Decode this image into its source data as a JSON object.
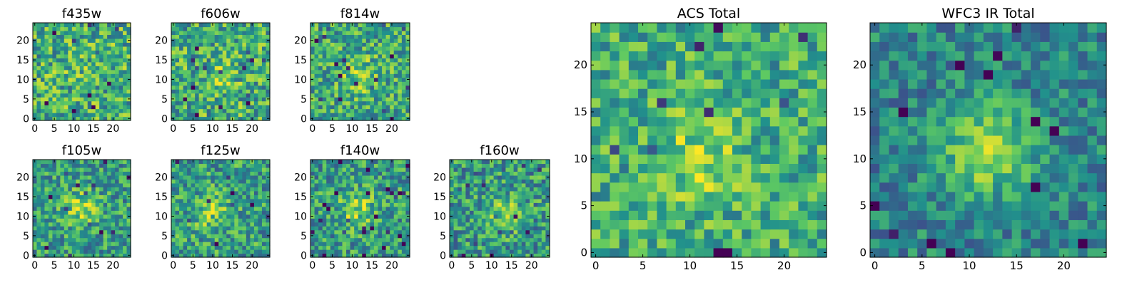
{
  "figure": {
    "colormap": "viridis",
    "colors": {
      "viridis_stops": [
        "#440154",
        "#3b528b",
        "#21918c",
        "#5ec962",
        "#fde725"
      ],
      "axes_border": "#000000",
      "background": "#ffffff"
    }
  },
  "chart_data": [
    {
      "id": "f435w",
      "type": "heatmap",
      "title": "f435w",
      "grid": false,
      "xlim": [
        0,
        24
      ],
      "ylim": [
        0,
        24
      ],
      "xticks": [
        "0",
        "5",
        "10",
        "15",
        "20"
      ],
      "yticks": [
        "0",
        "5",
        "10",
        "15",
        "20"
      ],
      "peak": {
        "x": 12,
        "y": 12
      },
      "peak_strength": 0.05,
      "noise": 0.3,
      "base_level": 0.63,
      "seed": 11
    },
    {
      "id": "f606w",
      "type": "heatmap",
      "title": "f606w",
      "grid": false,
      "xlim": [
        0,
        24
      ],
      "ylim": [
        0,
        24
      ],
      "xticks": [
        "0",
        "5",
        "10",
        "15",
        "20"
      ],
      "yticks": [
        "0",
        "5",
        "10",
        "15",
        "20"
      ],
      "peak": {
        "x": 12,
        "y": 10
      },
      "peak_strength": 0.12,
      "noise": 0.3,
      "base_level": 0.62,
      "seed": 23
    },
    {
      "id": "f814w",
      "type": "heatmap",
      "title": "f814w",
      "grid": false,
      "xlim": [
        0,
        24
      ],
      "ylim": [
        0,
        24
      ],
      "xticks": [
        "0",
        "5",
        "10",
        "15",
        "20"
      ],
      "yticks": [
        "0",
        "5",
        "10",
        "15",
        "20"
      ],
      "peak": {
        "x": 12,
        "y": 11
      },
      "peak_strength": 0.2,
      "noise": 0.28,
      "base_level": 0.6,
      "seed": 37
    },
    {
      "id": "f105w",
      "type": "heatmap",
      "title": "f105w",
      "grid": false,
      "xlim": [
        0,
        24
      ],
      "ylim": [
        0,
        24
      ],
      "xticks": [
        "0",
        "5",
        "10",
        "15",
        "20"
      ],
      "yticks": [
        "0",
        "5",
        "10",
        "15",
        "20"
      ],
      "peak": {
        "x": 12,
        "y": 12
      },
      "peak_strength": 0.28,
      "noise": 0.26,
      "base_level": 0.55,
      "seed": 41
    },
    {
      "id": "f125w",
      "type": "heatmap",
      "title": "f125w",
      "grid": false,
      "xlim": [
        0,
        24
      ],
      "ylim": [
        0,
        24
      ],
      "xticks": [
        "0",
        "5",
        "10",
        "15",
        "20"
      ],
      "yticks": [
        "0",
        "5",
        "10",
        "15",
        "20"
      ],
      "peak": {
        "x": 10,
        "y": 11
      },
      "peak_strength": 0.25,
      "noise": 0.27,
      "base_level": 0.56,
      "seed": 53
    },
    {
      "id": "f140w",
      "type": "heatmap",
      "title": "f140w",
      "grid": false,
      "xlim": [
        0,
        24
      ],
      "ylim": [
        0,
        24
      ],
      "xticks": [
        "0",
        "5",
        "10",
        "15",
        "20"
      ],
      "yticks": [
        "0",
        "5",
        "10",
        "15",
        "20"
      ],
      "peak": {
        "x": 11,
        "y": 12
      },
      "peak_strength": 0.27,
      "noise": 0.27,
      "base_level": 0.55,
      "seed": 67
    },
    {
      "id": "f160w",
      "type": "heatmap",
      "title": "f160w",
      "grid": false,
      "xlim": [
        0,
        24
      ],
      "ylim": [
        0,
        24
      ],
      "xticks": [
        "0",
        "5",
        "10",
        "15",
        "20"
      ],
      "yticks": [
        "0",
        "5",
        "10",
        "15",
        "20"
      ],
      "peak": {
        "x": 13,
        "y": 11
      },
      "peak_strength": 0.25,
      "noise": 0.28,
      "base_level": 0.54,
      "seed": 79
    },
    {
      "id": "acs_total",
      "type": "heatmap",
      "title": "ACS Total",
      "grid": false,
      "xlim": [
        0,
        24
      ],
      "ylim": [
        0,
        24
      ],
      "xticks": [
        "0",
        "5",
        "10",
        "15",
        "20"
      ],
      "yticks": [
        "0",
        "5",
        "10",
        "15",
        "20"
      ],
      "peak": {
        "x": 11,
        "y": 10
      },
      "peak_strength": 0.22,
      "noise": 0.24,
      "base_level": 0.62,
      "seed": 97
    },
    {
      "id": "wfc3_ir_total",
      "type": "heatmap",
      "title": "WFC3 IR Total",
      "grid": false,
      "xlim": [
        0,
        24
      ],
      "ylim": [
        0,
        24
      ],
      "xticks": [
        "0",
        "5",
        "10",
        "15",
        "20"
      ],
      "yticks": [
        "0",
        "5",
        "10",
        "15",
        "20"
      ],
      "peak": {
        "x": 12,
        "y": 11
      },
      "peak_strength": 0.45,
      "noise": 0.2,
      "base_level": 0.45,
      "seed": 113
    }
  ]
}
